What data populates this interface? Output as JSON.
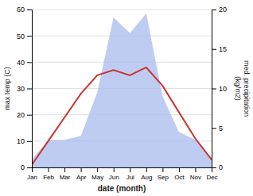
{
  "chart_data": {
    "type": "line",
    "categories": [
      "Jan",
      "Feb",
      "Mar",
      "Apr",
      "May",
      "Jun",
      "Jul",
      "Aug",
      "Sep",
      "Oct",
      "Nov",
      "Dec"
    ],
    "xlabel": "date (month)",
    "ylabel": "max temp (C)",
    "y2label": "med. precipitation\n(kg/m2)",
    "series": [
      {
        "type": "area",
        "axis": "y2",
        "color": "#aabbee",
        "values": [
          1.0,
          3.5,
          3.5,
          4.0,
          9.5,
          19.0,
          17.0,
          19.5,
          9.0,
          4.5,
          3.5,
          1.2
        ]
      },
      {
        "type": "line",
        "color": "#cc3333",
        "values": [
          1,
          10,
          19,
          28,
          35,
          37,
          35,
          38,
          31,
          21,
          11,
          3
        ]
      }
    ],
    "ylim": [
      0,
      60
    ],
    "yticks": [
      0,
      10,
      20,
      30,
      40,
      50,
      60
    ],
    "y2lim": [
      0,
      20
    ],
    "y2ticks": [
      0,
      5,
      10,
      15,
      20
    ],
    "grid": true
  }
}
